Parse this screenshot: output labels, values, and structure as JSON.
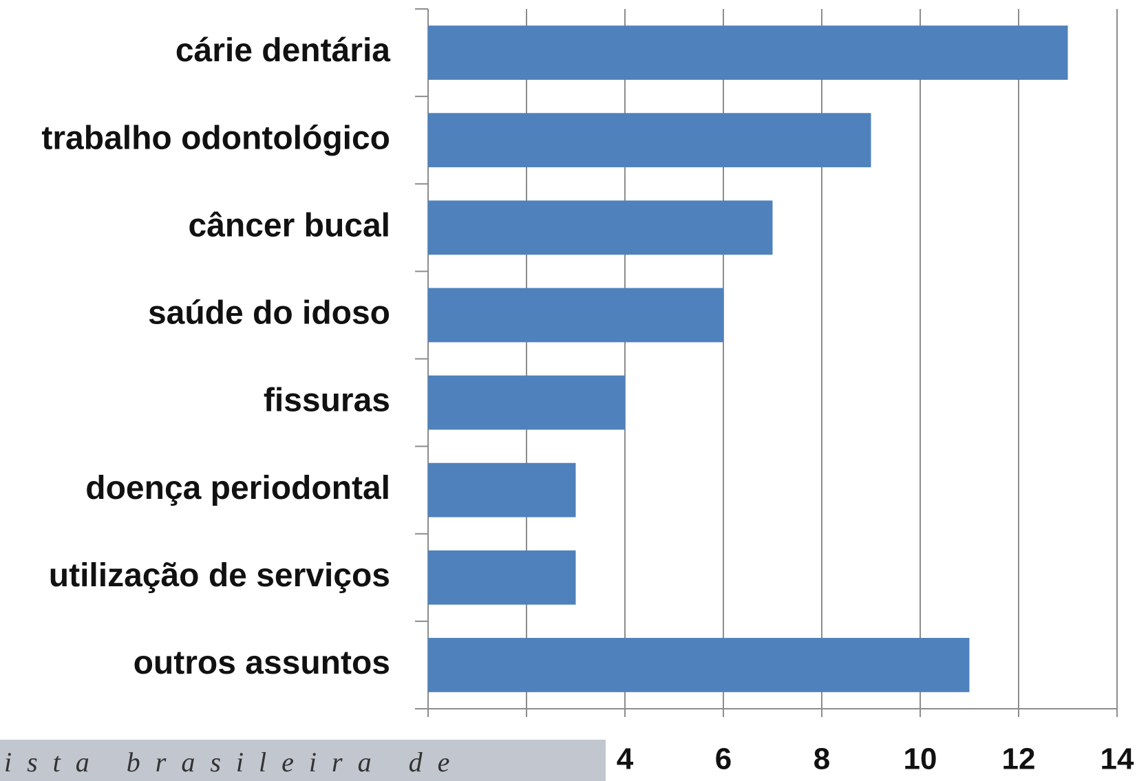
{
  "chart_data": {
    "type": "barh",
    "categories": [
      "cárie dentária",
      "trabalho odontológico",
      "câncer bucal",
      "saúde do idoso",
      "fissuras",
      "doença periodontal",
      "utilização de serviços",
      "outros assuntos"
    ],
    "values": [
      13,
      9,
      7,
      6,
      4,
      3,
      3,
      11
    ],
    "color": "#4f81bd",
    "xlim": [
      0,
      14
    ],
    "xticks": [
      0,
      2,
      4,
      6,
      8,
      10,
      12,
      14
    ],
    "grid": true,
    "annotation": "ista brasileira de"
  }
}
